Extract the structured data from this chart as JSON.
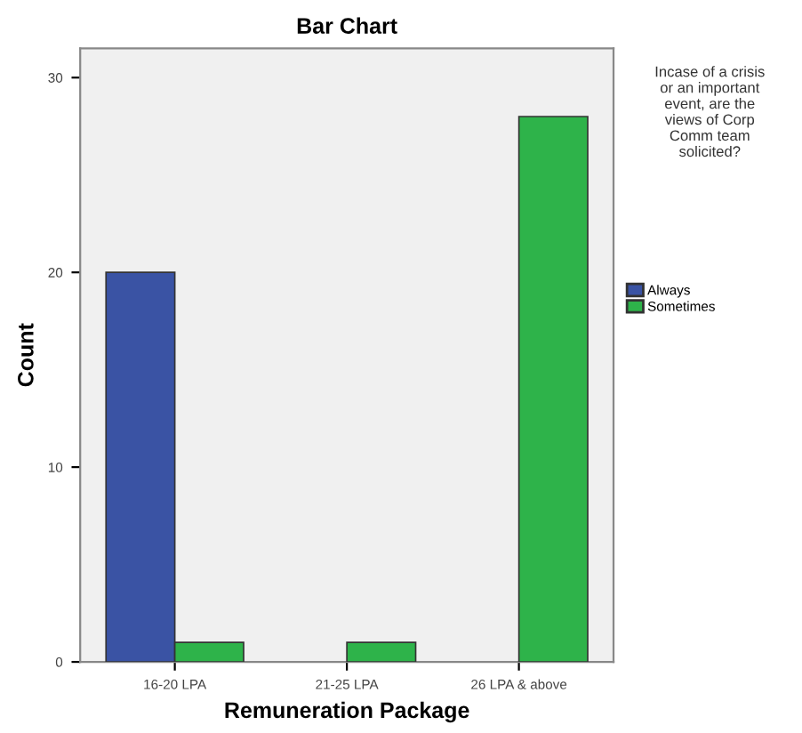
{
  "chart_data": {
    "type": "bar",
    "title": "Bar Chart",
    "xlabel": "Remuneration Package",
    "ylabel": "Count",
    "legend_title": "Incase of a crisis or an important event, are the views of Corp Comm team solicited?",
    "categories": [
      "16-20 LPA",
      "21-25 LPA",
      "26 LPA & above"
    ],
    "series": [
      {
        "name": "Always",
        "color": "#3a53a4",
        "values": [
          20,
          null,
          null
        ]
      },
      {
        "name": "Sometimes",
        "color": "#2eb34a",
        "values": [
          1,
          1,
          28
        ]
      }
    ],
    "ylim": [
      0,
      31.5
    ],
    "yticks": [
      0,
      10,
      20,
      30
    ],
    "grid": false,
    "legend": "right"
  }
}
